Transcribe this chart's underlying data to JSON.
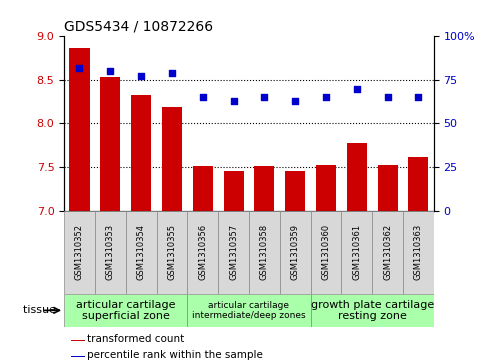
{
  "title": "GDS5434 / 10872266",
  "categories": [
    "GSM1310352",
    "GSM1310353",
    "GSM1310354",
    "GSM1310355",
    "GSM1310356",
    "GSM1310357",
    "GSM1310358",
    "GSM1310359",
    "GSM1310360",
    "GSM1310361",
    "GSM1310362",
    "GSM1310363"
  ],
  "bar_values": [
    8.87,
    8.53,
    8.33,
    8.19,
    7.51,
    7.45,
    7.51,
    7.45,
    7.52,
    7.78,
    7.52,
    7.61
  ],
  "dot_values": [
    82,
    80,
    77,
    79,
    65,
    63,
    65,
    63,
    65,
    70,
    65,
    65
  ],
  "ylim_left": [
    7,
    9
  ],
  "ylim_right": [
    0,
    100
  ],
  "yticks_left": [
    7,
    7.5,
    8,
    8.5,
    9
  ],
  "yticks_right": [
    0,
    25,
    50,
    75,
    100
  ],
  "bar_color": "#cc0000",
  "dot_color": "#0000cc",
  "tissue_groups": [
    {
      "label": "articular cartilage\nsuperficial zone",
      "start": 0,
      "end": 4,
      "fontsize": 8
    },
    {
      "label": "articular cartilage\nintermediate/deep zones",
      "start": 4,
      "end": 8,
      "fontsize": 6.5
    },
    {
      "label": "growth plate cartilage\nresting zone",
      "start": 8,
      "end": 12,
      "fontsize": 8
    }
  ],
  "tissue_label": "tissue",
  "legend_bar_label": "transformed count",
  "legend_dot_label": "percentile rank within the sample",
  "bg_color": "#d8d8d8",
  "green_color": "#aaffaa",
  "plot_bg": "#ffffff"
}
